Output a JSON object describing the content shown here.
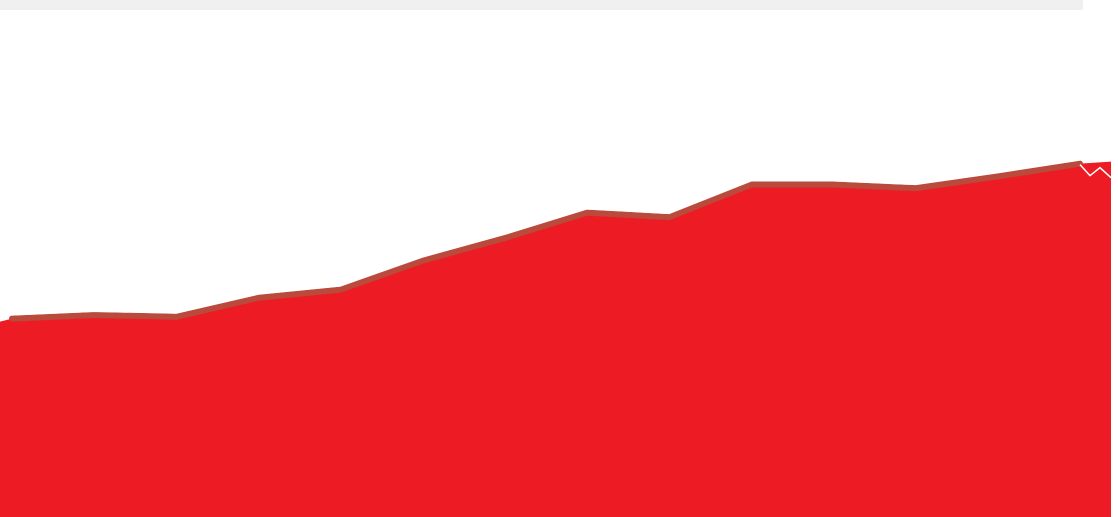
{
  "colors": {
    "area_fill": "#ED1C24",
    "line_stroke": "#B94A3C",
    "top_bar": "#F0F0F0",
    "background": "#FFFFFF"
  },
  "chart_data": {
    "type": "area",
    "title": "",
    "xlabel": "",
    "ylabel": "",
    "grid": false,
    "legend": "none",
    "x": [
      0,
      1,
      2,
      3,
      4,
      5,
      6,
      7,
      8,
      9,
      10,
      11,
      12,
      13
    ],
    "ylim": [
      0,
      100
    ],
    "series": [
      {
        "values": [
          43.8,
          44.6,
          44.2,
          48.4,
          50.2,
          56.6,
          61.6,
          67.2,
          66.2,
          73.4,
          73.4,
          72.6,
          75.2,
          78.0
        ]
      }
    ]
  }
}
